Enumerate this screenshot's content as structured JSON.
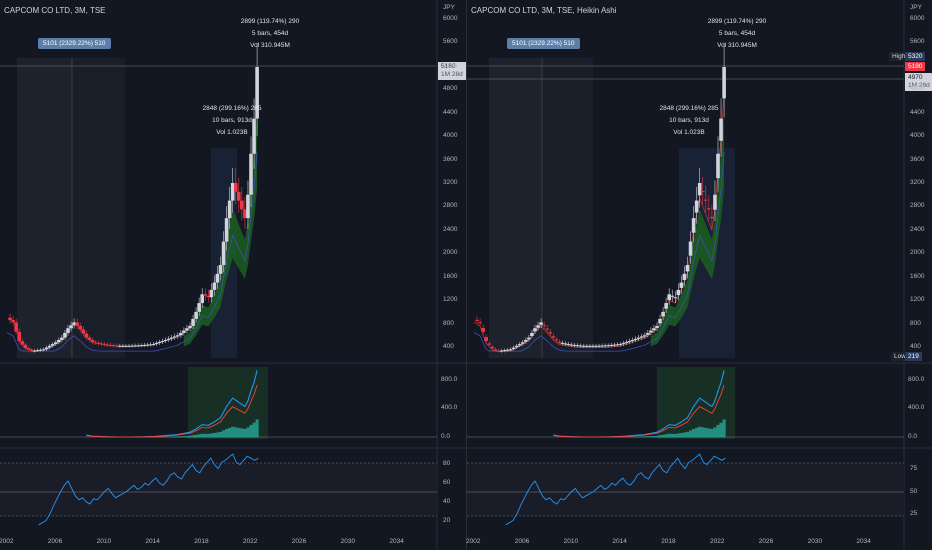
{
  "left": {
    "title": "CAPCOM CO LTD, 3M, TSE",
    "currency": "JPY",
    "measure_top": [
      "2899 (119.74%) 290",
      "5 bars, 454d",
      "Vol 310.945M"
    ],
    "measure_mid": [
      "2848 (299.16%) 285",
      "10 bars, 913d",
      "Vol 1.023B"
    ],
    "measure_badge": "5101 (2329.22%) 510",
    "price_ticks": [
      "6000",
      "5600",
      "5180",
      "4800",
      "4400",
      "4000",
      "3600",
      "3200",
      "2800",
      "2400",
      "2000",
      "1600",
      "1200",
      "800",
      "400"
    ],
    "last_price": "5180",
    "last_price_sub": "1M 28d",
    "macd_ticks": [
      "800.0",
      "400.0",
      "0.0"
    ],
    "rsi_ticks": [
      "80",
      "60",
      "40",
      "20"
    ],
    "x_ticks": [
      "2002",
      "2006",
      "2010",
      "2014",
      "2018",
      "2022",
      "2026",
      "2030",
      "2034"
    ]
  },
  "right": {
    "title": "CAPCOM CO LTD, 3M, TSE, Heikin Ashi",
    "currency": "JPY",
    "measure_top": [
      "2899 (119.74%) 290",
      "5 bars, 454d",
      "Vol 310.945M"
    ],
    "measure_mid": [
      "2848 (299.16%) 285",
      "10 bars, 913d",
      "Vol 1.023B"
    ],
    "measure_badge": "5101 (2329.22%) 510",
    "price_ticks": [
      "6000",
      "5600",
      "4800",
      "4400",
      "4000",
      "3600",
      "3200",
      "2800",
      "2400",
      "2000",
      "1600",
      "1200",
      "800",
      "400"
    ],
    "high_label": "High",
    "high_value": "5320",
    "last_price": "5180",
    "ha_price": "4970",
    "ha_price_sub": "1M 28d",
    "low_label": "Low",
    "low_value": "219",
    "macd_ticks": [
      "800.0",
      "400.0",
      "0.0"
    ],
    "rsi_ticks": [
      "75",
      "50",
      "25"
    ],
    "x_ticks": [
      "2002",
      "2006",
      "2010",
      "2014",
      "2018",
      "2022",
      "2026",
      "2030",
      "2034"
    ]
  },
  "colors": {
    "up": "#d1d4dc",
    "down": "#f23645",
    "bg": "#131722",
    "cloud": "#1b5e20",
    "macd": "#2196f3",
    "signal": "#f44336",
    "rsi": "#2196f3",
    "rsi_up": "#4caf50"
  }
}
